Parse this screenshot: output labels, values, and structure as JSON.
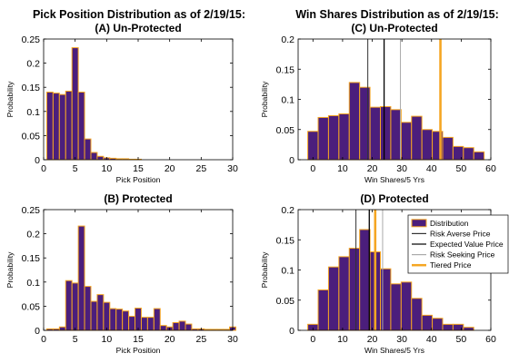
{
  "colors": {
    "bar_fill": "#4b1e7c",
    "bar_edge": "#f5a623",
    "risk_averse": "#333333",
    "expected": "#000000",
    "risk_seeking": "#aaaaaa",
    "tiered": "#f5a623"
  },
  "titles": {
    "left": "Pick Position Distribution as of 2/19/15:",
    "right": "Win Shares Distribution as of 2/19/15:"
  },
  "chart_data": [
    {
      "id": "A",
      "type": "bar",
      "title": "(A) Un-Protected",
      "xlabel": "Pick Position",
      "ylabel": "Probability",
      "xlim": [
        0,
        30
      ],
      "ylim": [
        0,
        0.25
      ],
      "xticks": [
        "0",
        "5",
        "10",
        "15",
        "20",
        "25",
        "30"
      ],
      "yticks": [
        "0",
        "0.05",
        "0.1",
        "0.15",
        "0.2",
        "0.25"
      ],
      "bin_width": 1,
      "x": [
        1,
        2,
        3,
        4,
        5,
        6,
        7,
        8,
        9,
        10,
        11,
        12,
        13,
        14,
        15
      ],
      "values": [
        0.14,
        0.138,
        0.135,
        0.142,
        0.232,
        0.14,
        0.043,
        0.015,
        0.007,
        0.004,
        0.003,
        0.002,
        0.002,
        0.001,
        0.001
      ],
      "grid": false
    },
    {
      "id": "B",
      "type": "bar",
      "title": "(B) Protected",
      "xlabel": "Pick Position",
      "ylabel": "Probability",
      "xlim": [
        0,
        30
      ],
      "ylim": [
        0,
        0.25
      ],
      "xticks": [
        "0",
        "5",
        "10",
        "15",
        "20",
        "25",
        "30"
      ],
      "yticks": [
        "0",
        "0.05",
        "0.1",
        "0.15",
        "0.2",
        "0.25"
      ],
      "bin_width": 1,
      "x": [
        1,
        2,
        3,
        4,
        5,
        6,
        7,
        8,
        9,
        10,
        11,
        12,
        13,
        14,
        15,
        16,
        17,
        18,
        19,
        20,
        21,
        22,
        23,
        24,
        25,
        26,
        27,
        28,
        29,
        30
      ],
      "values": [
        0.003,
        0.003,
        0.007,
        0.103,
        0.098,
        0.216,
        0.091,
        0.06,
        0.074,
        0.058,
        0.045,
        0.044,
        0.04,
        0.029,
        0.046,
        0.027,
        0.027,
        0.045,
        0.01,
        0.007,
        0.016,
        0.019,
        0.013,
        0.003,
        0.003,
        0.002,
        0.002,
        0.002,
        0.002,
        0.007
      ],
      "grid": false
    },
    {
      "id": "C",
      "type": "bar",
      "title": "(C) Un-Protected",
      "xlabel": "Win Shares/5 Yrs",
      "ylabel": "Probability",
      "xlim": [
        -5,
        60
      ],
      "ylim": [
        0,
        0.2
      ],
      "xticks": [
        "0",
        "10",
        "20",
        "30",
        "40",
        "50",
        "60"
      ],
      "yticks": [
        "0",
        "0.05",
        "0.1",
        "0.15",
        "0.2"
      ],
      "bin_width": 3.5,
      "x": [
        0,
        3.5,
        7,
        10.5,
        14,
        17.5,
        21,
        24.5,
        28,
        31.5,
        35,
        38.5,
        42,
        45.5,
        49,
        52.5,
        56
      ],
      "values": [
        0.047,
        0.07,
        0.073,
        0.076,
        0.128,
        0.12,
        0.087,
        0.088,
        0.083,
        0.062,
        0.072,
        0.05,
        0.047,
        0.037,
        0.022,
        0.02,
        0.013
      ],
      "vlines": [
        {
          "key": "risk_averse",
          "x": 18.5
        },
        {
          "key": "expected",
          "x": 24
        },
        {
          "key": "risk_seeking",
          "x": 29.5
        },
        {
          "key": "tiered",
          "x": 43
        }
      ],
      "grid": false
    },
    {
      "id": "D",
      "type": "bar",
      "title": "(D) Protected",
      "xlabel": "Win Shares/5 Yrs",
      "ylabel": "Probability",
      "xlim": [
        -5,
        60
      ],
      "ylim": [
        0,
        0.2
      ],
      "xticks": [
        "0",
        "10",
        "20",
        "30",
        "40",
        "50",
        "60"
      ],
      "yticks": [
        "0",
        "0.05",
        "0.1",
        "0.15",
        "0.2"
      ],
      "bin_width": 3.5,
      "x": [
        0,
        3.5,
        7,
        10.5,
        14,
        17.5,
        21,
        24.5,
        28,
        31.5,
        35,
        38.5,
        42,
        45.5,
        49,
        52.5
      ],
      "values": [
        0.01,
        0.067,
        0.105,
        0.122,
        0.136,
        0.167,
        0.13,
        0.102,
        0.077,
        0.08,
        0.053,
        0.025,
        0.02,
        0.01,
        0.01,
        0.005
      ],
      "vlines": [
        {
          "key": "risk_averse",
          "x": 14.5
        },
        {
          "key": "expected",
          "x": 19
        },
        {
          "key": "risk_seeking",
          "x": 23.5
        },
        {
          "key": "tiered",
          "x": 21
        }
      ],
      "legend": {
        "placement": "top-right",
        "items": [
          {
            "key": "distribution",
            "label": "Distribution"
          },
          {
            "key": "risk_averse",
            "label": "Risk Averse Price"
          },
          {
            "key": "expected",
            "label": "Expected Value Price"
          },
          {
            "key": "risk_seeking",
            "label": "Risk Seeking Price"
          },
          {
            "key": "tiered",
            "label": "Tiered Price"
          }
        ]
      },
      "grid": false
    }
  ]
}
